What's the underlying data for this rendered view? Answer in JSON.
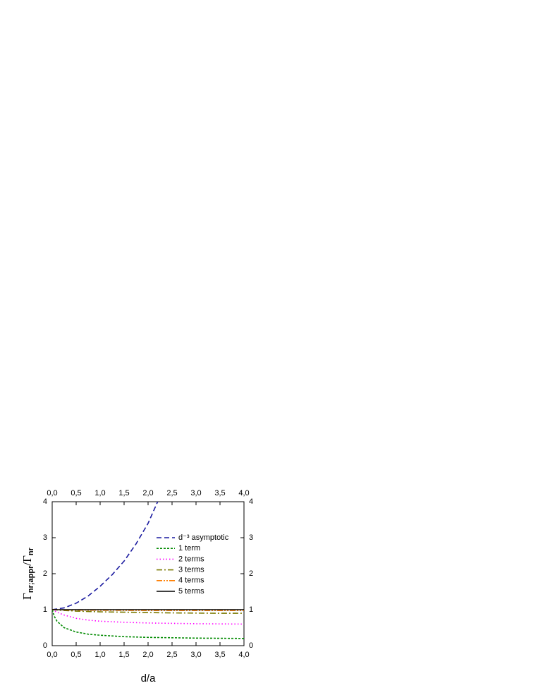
{
  "chart_data": {
    "type": "line",
    "xlabel": "d/a",
    "ylabel_parts": [
      "Γ",
      "nr;appr",
      "/Γ",
      "nr"
    ],
    "xlim": [
      0,
      4
    ],
    "ylim": [
      0,
      4
    ],
    "xticks": [
      {
        "value": 0,
        "label": "0,0"
      },
      {
        "value": 0.5,
        "label": "0,5"
      },
      {
        "value": 1,
        "label": "1,0"
      },
      {
        "value": 1.5,
        "label": "1,5"
      },
      {
        "value": 2,
        "label": "2,0"
      },
      {
        "value": 2.5,
        "label": "2,5"
      },
      {
        "value": 3,
        "label": "3,0"
      },
      {
        "value": 3.5,
        "label": "3,5"
      },
      {
        "value": 4,
        "label": "4,0"
      }
    ],
    "yticks": [
      0,
      1,
      2,
      3,
      4
    ],
    "series": [
      {
        "name": "d⁻³ asymptotic",
        "color": "#1c1ca0",
        "dash": "7,4",
        "x": [
          0,
          0.25,
          0.5,
          0.75,
          1,
          1.25,
          1.5,
          1.75,
          2,
          2.2
        ],
        "values": [
          1.0,
          1.05,
          1.18,
          1.38,
          1.65,
          1.97,
          2.35,
          2.83,
          3.4,
          4.0
        ]
      },
      {
        "name": "1 term",
        "color": "#008a00",
        "dash": "3,2",
        "x": [
          0,
          0.05,
          0.1,
          0.25,
          0.5,
          0.75,
          1,
          1.5,
          2,
          2.5,
          3,
          3.5,
          4
        ],
        "values": [
          1.0,
          0.8,
          0.68,
          0.5,
          0.38,
          0.32,
          0.29,
          0.25,
          0.23,
          0.22,
          0.21,
          0.205,
          0.2
        ]
      },
      {
        "name": "2 terms",
        "color": "#ff00ff",
        "dash": "1.5,3",
        "x": [
          0,
          0.1,
          0.25,
          0.5,
          0.75,
          1,
          1.5,
          2,
          2.5,
          3,
          3.5,
          4
        ],
        "values": [
          1.0,
          0.93,
          0.85,
          0.76,
          0.71,
          0.68,
          0.65,
          0.63,
          0.62,
          0.61,
          0.605,
          0.6
        ]
      },
      {
        "name": "3 terms",
        "color": "#7a7a00",
        "dash": "8,3,2,3",
        "x": [
          0,
          0.25,
          0.5,
          1,
          1.5,
          2,
          2.5,
          3,
          3.5,
          4
        ],
        "values": [
          1.0,
          0.98,
          0.96,
          0.94,
          0.93,
          0.92,
          0.91,
          0.905,
          0.9,
          0.9
        ]
      },
      {
        "name": "4 terms",
        "color": "#ff7f00",
        "dash": "8,2,2,2,2,2",
        "x": [
          0,
          0.5,
          1,
          2,
          3,
          4
        ],
        "values": [
          1.0,
          0.99,
          0.985,
          0.98,
          0.98,
          0.98
        ]
      },
      {
        "name": "5 terms",
        "color": "#000000",
        "dash": "none",
        "x": [
          0,
          1,
          2,
          3,
          4
        ],
        "values": [
          1.0,
          1.0,
          1.0,
          1.0,
          1.0
        ]
      }
    ]
  }
}
